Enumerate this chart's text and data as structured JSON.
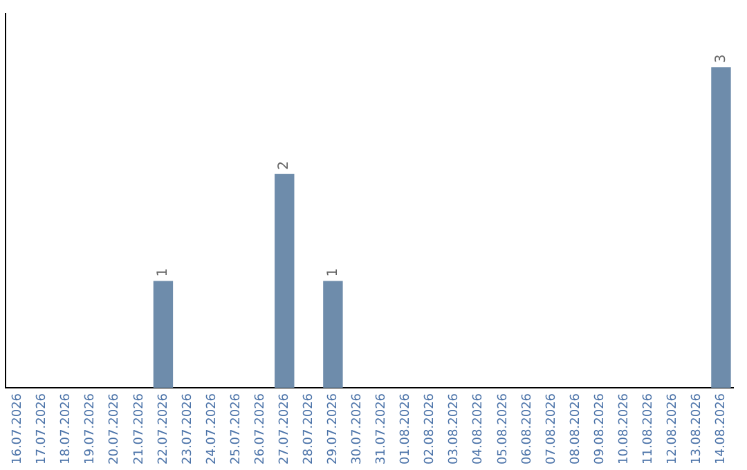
{
  "chart_data": {
    "type": "bar",
    "categories": [
      "16.07.2026",
      "17.07.2026",
      "18.07.2026",
      "19.07.2026",
      "20.07.2026",
      "21.07.2026",
      "22.07.2026",
      "23.07.2026",
      "24.07.2026",
      "25.07.2026",
      "26.07.2026",
      "27.07.2026",
      "28.07.2026",
      "29.07.2026",
      "30.07.2026",
      "31.07.2026",
      "01.08.2026",
      "02.08.2026",
      "03.08.2026",
      "04.08.2026",
      "05.08.2026",
      "06.08.2026",
      "07.08.2026",
      "08.08.2026",
      "09.08.2026",
      "10.08.2026",
      "11.08.2026",
      "12.08.2026",
      "13.08.2026",
      "14.08.2026"
    ],
    "values": [
      0,
      0,
      0,
      0,
      0,
      0,
      1,
      0,
      0,
      0,
      0,
      2,
      0,
      1,
      0,
      0,
      0,
      0,
      0,
      0,
      0,
      0,
      0,
      0,
      0,
      0,
      0,
      0,
      0,
      3
    ],
    "value_labels": [
      null,
      null,
      null,
      null,
      null,
      null,
      "1",
      null,
      null,
      null,
      null,
      "2",
      null,
      "1",
      null,
      null,
      null,
      null,
      null,
      null,
      null,
      null,
      null,
      null,
      null,
      null,
      null,
      null,
      null,
      "3"
    ],
    "color": "#6e8cab",
    "grid": false,
    "legend": false,
    "tick_labels": "x"
  }
}
